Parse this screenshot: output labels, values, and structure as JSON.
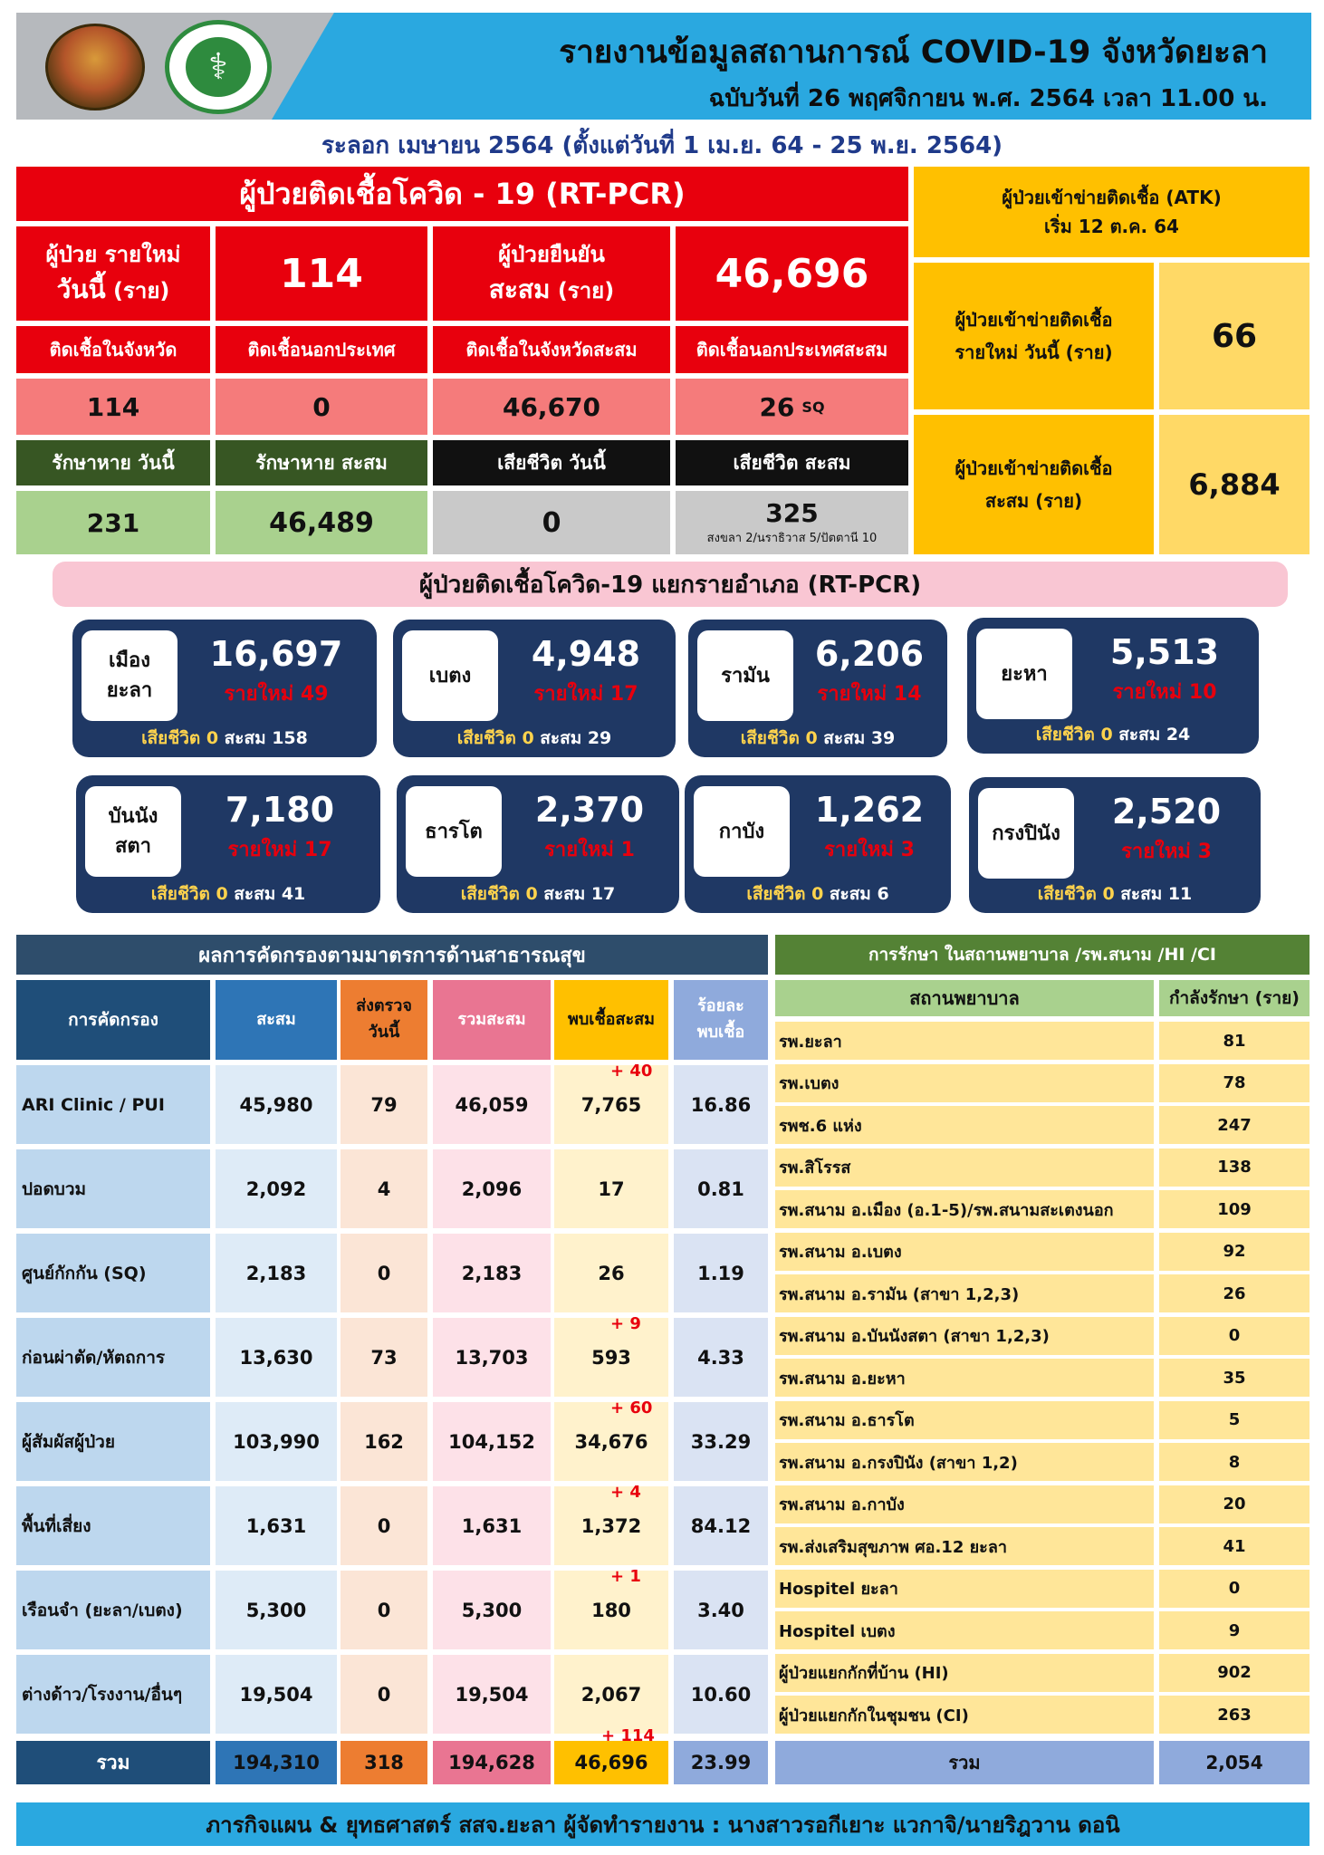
{
  "header": {
    "title": "รายงานข้อมูลสถานการณ์ COVID-19 จังหวัดยะลา",
    "subtitle": "ฉบับวันที่  26 พฤศจิกายน พ.ศ. 2564 เวลา 11.00 น.",
    "wave": "ระลอก เมษายน 2564 (ตั้งแต่วันที่  1  เม.ย. 64  - 25 พ.ย. 2564)",
    "ministry_logo_text": "MINISTRY OF PUBLIC HEALTH"
  },
  "rtpcr": {
    "title": "ผู้ป่วยติดเชื้อโควิด - 19 (RT-PCR)",
    "new_today_label_1": "ผู้ป่วย รายใหม่",
    "new_today_label_2": "วันนี้",
    "new_today_unit": "(ราย)",
    "new_today": "114",
    "cum_label_1": "ผู้ป่วยยืนยัน",
    "cum_label_2": "สะสม",
    "cum_unit": "(ราย)",
    "cum": "46,696",
    "in_province_label": "ติดเชื้อในจังหวัด",
    "abroad_label": "ติดเชื้อนอกประเทศ",
    "in_province_cum_label": "ติดเชื้อในจังหวัดสะสม",
    "abroad_cum_label": "ติดเชื้อนอกประเทศสะสม",
    "in_province": "114",
    "abroad": "0",
    "in_province_cum": "46,670",
    "abroad_cum": "26",
    "abroad_cum_suffix": "SQ",
    "recovered_today_label": "รักษาหาย วันนี้",
    "recovered_cum_label": "รักษาหาย สะสม",
    "deaths_today_label": "เสียชีวิต วันนี้",
    "deaths_cum_label": "เสียชีวิต สะสม",
    "recovered_today": "231",
    "recovered_cum": "46,489",
    "deaths_today": "0",
    "deaths_cum": "325",
    "deaths_note": "สงขลา 2/นราธิวาส 5/ปัตตานี 10"
  },
  "atk": {
    "title_1": "ผู้ป่วยเข้าข่ายติดเชื้อ (ATK)",
    "title_2": "เริ่ม 12 ต.ค. 64",
    "new_label_1": "ผู้ป่วยเข้าข่ายติดเชื้อ",
    "new_label_2": "รายใหม่ วันนี้ (ราย)",
    "new_value": "66",
    "cum_label_1": "ผู้ป่วยเข้าข่ายติดเชื้อ",
    "cum_label_2": "สะสม (ราย)",
    "cum_value": "6,884"
  },
  "districts": {
    "title": "ผู้ป่วยติดเชื้อโควิด-19 แยกรายอำเภอ (RT-PCR)",
    "items": [
      {
        "name": "เมือง\nยะลา",
        "total": "16,697",
        "new": "รายใหม่ 49",
        "deaths": "เสียชีวิต 0",
        "cum": "สะสม 158"
      },
      {
        "name": "เบตง",
        "total": "4,948",
        "new": "รายใหม่ 17",
        "deaths": "เสียชีวิต 0",
        "cum": "สะสม 29"
      },
      {
        "name": "รามัน",
        "total": "6,206",
        "new": "รายใหม่ 14",
        "deaths": "เสียชีวิต 0",
        "cum": "สะสม 39"
      },
      {
        "name": "ยะหา",
        "total": "5,513",
        "new": "รายใหม่ 10",
        "deaths": "เสียชีวิต 0",
        "cum": "สะสม 24"
      },
      {
        "name": "บันนัง\nสตา",
        "total": "7,180",
        "new": "รายใหม่ 17",
        "deaths": "เสียชีวิต 0",
        "cum": "สะสม 41"
      },
      {
        "name": "ธารโต",
        "total": "2,370",
        "new": "รายใหม่ 1",
        "deaths": "เสียชีวิต 0",
        "cum": "สะสม 17"
      },
      {
        "name": "กาบัง",
        "total": "1,262",
        "new": "รายใหม่ 3",
        "deaths": "เสียชีวิต 0",
        "cum": "สะสม 6"
      },
      {
        "name": "กรงปินัง",
        "total": "2,520",
        "new": "รายใหม่ 3",
        "deaths": "เสียชีวิต 0",
        "cum": "สะสม 11"
      }
    ]
  },
  "screening": {
    "title": "ผลการคัดกรองตามมาตรการด้านสาธารณสุข",
    "headers": [
      "การคัดกรอง",
      "สะสม",
      "ส่งตรวจ\nวันนี้",
      "รวมสะสม",
      "พบเชื้อสะสม",
      "ร้อยละ\nพบเชื้อ"
    ],
    "rows": [
      {
        "label": "ARI Clinic / PUI",
        "cum": "45,980",
        "today": "79",
        "total": "46,059",
        "found": "7,765",
        "delta": "+ 40",
        "pct": "16.86"
      },
      {
        "label": "ปอดบวม",
        "cum": "2,092",
        "today": "4",
        "total": "2,096",
        "found": "17",
        "delta": "",
        "pct": "0.81"
      },
      {
        "label": "ศูนย์กักกัน (SQ)",
        "cum": "2,183",
        "today": "0",
        "total": "2,183",
        "found": "26",
        "delta": "",
        "pct": "1.19"
      },
      {
        "label": "ก่อนผ่าตัด/หัตถการ",
        "cum": "13,630",
        "today": "73",
        "total": "13,703",
        "found": "593",
        "delta": "+ 9",
        "pct": "4.33"
      },
      {
        "label": "ผู้สัมผัสผู้ป่วย",
        "cum": "103,990",
        "today": "162",
        "total": "104,152",
        "found": "34,676",
        "delta": "+ 60",
        "pct": "33.29"
      },
      {
        "label": "พื้นที่เสี่ยง",
        "cum": "1,631",
        "today": "0",
        "total": "1,631",
        "found": "1,372",
        "delta": "+ 4",
        "pct": "84.12"
      },
      {
        "label": "เรือนจำ (ยะลา/เบตง)",
        "cum": "5,300",
        "today": "0",
        "total": "5,300",
        "found": "180",
        "delta": "+ 1",
        "pct": "3.40"
      },
      {
        "label": "ต่างด้าว/โรงงาน/อื่นๆ",
        "cum": "19,504",
        "today": "0",
        "total": "19,504",
        "found": "2,067",
        "delta": "",
        "pct": "10.60"
      }
    ],
    "total": {
      "label": "รวม",
      "cum": "194,310",
      "today": "318",
      "total": "194,628",
      "found": "46,696",
      "delta": "+ 114",
      "pct": "23.99"
    }
  },
  "hospitals": {
    "title": "การรักษา ในสถานพยาบาล /รพ.สนาม /HI /CI",
    "col_name": "สถานพยาบาล",
    "col_value": "กำลังรักษา (ราย)",
    "rows": [
      {
        "name": "รพ.ยะลา",
        "value": "81"
      },
      {
        "name": "รพ.เบตง",
        "value": "78"
      },
      {
        "name": "รพช.6 แห่ง",
        "value": "247"
      },
      {
        "name": "รพ.สิโรรส",
        "value": "138"
      },
      {
        "name": "รพ.สนาม อ.เมือง (อ.1-5)/รพ.สนามสะเตงนอก",
        "value": "109"
      },
      {
        "name": "รพ.สนาม อ.เบตง",
        "value": "92"
      },
      {
        "name": "รพ.สนาม อ.รามัน (สาขา 1,2,3)",
        "value": "26"
      },
      {
        "name": "รพ.สนาม อ.บันนังสตา (สาขา 1,2,3)",
        "value": "0"
      },
      {
        "name": "รพ.สนาม อ.ยะหา",
        "value": "35"
      },
      {
        "name": "รพ.สนาม อ.ธารโต",
        "value": "5"
      },
      {
        "name": "รพ.สนาม อ.กรงปินัง (สาขา 1,2)",
        "value": "8"
      },
      {
        "name": "รพ.สนาม อ.กาบัง",
        "value": "20"
      },
      {
        "name": "รพ.ส่งเสริมสุขภาพ ศอ.12 ยะลา",
        "value": "41"
      },
      {
        "name": "Hospitel  ยะลา",
        "value": "0"
      },
      {
        "name": "Hospitel  เบตง",
        "value": "9"
      },
      {
        "name": "ผู้ป่วยแยกกักที่บ้าน (HI)",
        "value": "902"
      },
      {
        "name": "ผู้ป่วยแยกกักในชุมชน (CI)",
        "value": "263"
      }
    ],
    "total_label": "รวม",
    "total_value": "2,054"
  },
  "footer": {
    "text": "ภารกิจแผน & ยุทธศาสตร์  สสจ.ยะลา     ผู้จัดทำรายงาน :  นางสาวรอกีเยาะ  แวกาจิ/นายริฎวาน  ดอนิ"
  }
}
